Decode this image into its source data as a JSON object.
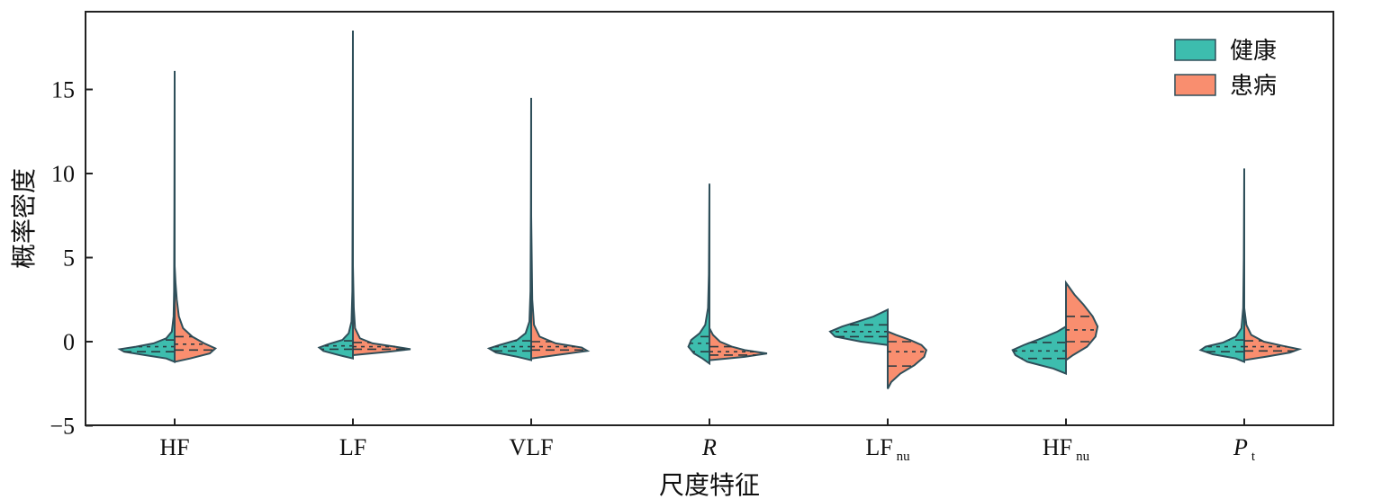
{
  "chart_data": {
    "type": "violin",
    "xlabel": "尺度特征",
    "ylabel": "概率密度",
    "ylim": [
      -5,
      19
    ],
    "yticks": [
      -5,
      0,
      5,
      10,
      15
    ],
    "grid": false,
    "legend_position": "top-right",
    "colors": {
      "healthy": "#3dbdae",
      "patient": "#f98e6f"
    },
    "categories": [
      {
        "name": "HF",
        "sub": "",
        "italic": false
      },
      {
        "name": "LF",
        "sub": "",
        "italic": false
      },
      {
        "name": "VLF",
        "sub": "",
        "italic": false
      },
      {
        "name": "R",
        "sub": "",
        "italic": true
      },
      {
        "name": "LF",
        "sub": "nu",
        "italic": false
      },
      {
        "name": "HF",
        "sub": "nu",
        "italic": false
      },
      {
        "name": "P",
        "sub": "t",
        "italic": true
      }
    ],
    "series": [
      {
        "name": "健康",
        "violins": [
          {
            "min": -1.2,
            "max": 16.1,
            "q1": -0.6,
            "median": -0.3,
            "q3": 0.1,
            "profile": [
              [
                -1.2,
                0.0
              ],
              [
                -1.0,
                0.12
              ],
              [
                -0.8,
                0.42
              ],
              [
                -0.6,
                0.72
              ],
              [
                -0.45,
                0.78
              ],
              [
                -0.3,
                0.55
              ],
              [
                -0.1,
                0.3
              ],
              [
                0.2,
                0.12
              ],
              [
                0.6,
                0.04
              ],
              [
                1.5,
                0.015
              ],
              [
                3,
                0.008
              ],
              [
                8,
                0.004
              ],
              [
                16.1,
                0.0
              ]
            ]
          },
          {
            "min": -1.0,
            "max": 18.5,
            "q1": -0.45,
            "median": -0.25,
            "q3": 0.05,
            "profile": [
              [
                -1.0,
                0.0
              ],
              [
                -0.8,
                0.2
              ],
              [
                -0.55,
                0.42
              ],
              [
                -0.35,
                0.48
              ],
              [
                -0.15,
                0.35
              ],
              [
                0.1,
                0.15
              ],
              [
                0.5,
                0.06
              ],
              [
                1.2,
                0.02
              ],
              [
                3,
                0.008
              ],
              [
                9,
                0.004
              ],
              [
                18.5,
                0.0
              ]
            ]
          },
          {
            "min": -1.1,
            "max": 14.5,
            "q1": -0.55,
            "median": -0.3,
            "q3": 0.05,
            "profile": [
              [
                -1.1,
                0.0
              ],
              [
                -0.9,
                0.2
              ],
              [
                -0.65,
                0.5
              ],
              [
                -0.4,
                0.6
              ],
              [
                -0.2,
                0.45
              ],
              [
                0.1,
                0.2
              ],
              [
                0.5,
                0.08
              ],
              [
                1.2,
                0.025
              ],
              [
                3,
                0.01
              ],
              [
                8,
                0.004
              ],
              [
                14.5,
                0.0
              ]
            ]
          },
          {
            "min": -1.3,
            "max": 9.4,
            "q1": -0.6,
            "median": -0.1,
            "q3": 0.3,
            "profile": [
              [
                -1.3,
                0.0
              ],
              [
                -1.0,
                0.1
              ],
              [
                -0.7,
                0.22
              ],
              [
                -0.3,
                0.3
              ],
              [
                0.1,
                0.26
              ],
              [
                0.5,
                0.14
              ],
              [
                1.0,
                0.06
              ],
              [
                2.0,
                0.02
              ],
              [
                4,
                0.008
              ],
              [
                9.4,
                0.0
              ]
            ]
          },
          {
            "min": -0.2,
            "max": 1.9,
            "q1": 0.3,
            "median": 0.6,
            "q3": 1.0,
            "profile": [
              [
                -0.2,
                0.0
              ],
              [
                0.0,
                0.38
              ],
              [
                0.3,
                0.75
              ],
              [
                0.6,
                0.82
              ],
              [
                0.9,
                0.65
              ],
              [
                1.2,
                0.42
              ],
              [
                1.5,
                0.2
              ],
              [
                1.9,
                0.0
              ]
            ]
          },
          {
            "min": -1.9,
            "max": 0.9,
            "q1": -1.0,
            "median": -0.55,
            "q3": -0.05,
            "profile": [
              [
                -1.9,
                0.0
              ],
              [
                -1.6,
                0.18
              ],
              [
                -1.2,
                0.55
              ],
              [
                -0.8,
                0.72
              ],
              [
                -0.5,
                0.76
              ],
              [
                -0.2,
                0.6
              ],
              [
                0.2,
                0.35
              ],
              [
                0.6,
                0.12
              ],
              [
                0.9,
                0.0
              ]
            ]
          },
          {
            "min": -1.2,
            "max": 10.3,
            "q1": -0.6,
            "median": -0.3,
            "q3": 0.1,
            "profile": [
              [
                -1.2,
                0.0
              ],
              [
                -1.0,
                0.12
              ],
              [
                -0.75,
                0.45
              ],
              [
                -0.5,
                0.62
              ],
              [
                -0.3,
                0.55
              ],
              [
                -0.05,
                0.3
              ],
              [
                0.3,
                0.12
              ],
              [
                0.8,
                0.04
              ],
              [
                2,
                0.015
              ],
              [
                5,
                0.006
              ],
              [
                10.3,
                0.0
              ]
            ]
          }
        ]
      },
      {
        "name": "患病",
        "violins": [
          {
            "min": -1.2,
            "max": 4.5,
            "q1": -0.5,
            "median": -0.15,
            "q3": 0.3,
            "profile": [
              [
                -1.2,
                0.0
              ],
              [
                -1.0,
                0.22
              ],
              [
                -0.7,
                0.5
              ],
              [
                -0.4,
                0.58
              ],
              [
                -0.1,
                0.42
              ],
              [
                0.3,
                0.25
              ],
              [
                0.8,
                0.12
              ],
              [
                1.5,
                0.06
              ],
              [
                2.5,
                0.03
              ],
              [
                3.5,
                0.012
              ],
              [
                4.5,
                0.0
              ]
            ]
          },
          {
            "min": -0.8,
            "max": 4.5,
            "q1": -0.45,
            "median": -0.3,
            "q3": -0.05,
            "profile": [
              [
                -0.8,
                0.0
              ],
              [
                -0.6,
                0.5
              ],
              [
                -0.45,
                0.82
              ],
              [
                -0.3,
                0.6
              ],
              [
                -0.1,
                0.28
              ],
              [
                0.2,
                0.1
              ],
              [
                0.8,
                0.03
              ],
              [
                2,
                0.012
              ],
              [
                4.5,
                0.0
              ]
            ]
          },
          {
            "min": -1.0,
            "max": 7.5,
            "q1": -0.5,
            "median": -0.3,
            "q3": 0.0,
            "profile": [
              [
                -1.0,
                0.0
              ],
              [
                -0.8,
                0.35
              ],
              [
                -0.55,
                0.8
              ],
              [
                -0.35,
                0.72
              ],
              [
                -0.1,
                0.35
              ],
              [
                0.3,
                0.12
              ],
              [
                1.0,
                0.04
              ],
              [
                2.5,
                0.015
              ],
              [
                7.5,
                0.0
              ]
            ]
          },
          {
            "min": -1.1,
            "max": 0.8,
            "q1": -0.8,
            "median": -0.6,
            "q3": -0.3,
            "profile": [
              [
                -1.1,
                0.0
              ],
              [
                -0.9,
                0.5
              ],
              [
                -0.7,
                0.82
              ],
              [
                -0.5,
                0.5
              ],
              [
                -0.3,
                0.32
              ],
              [
                0.0,
                0.15
              ],
              [
                0.4,
                0.05
              ],
              [
                0.8,
                0.0
              ]
            ]
          },
          {
            "min": -2.8,
            "max": 0.6,
            "q1": -1.45,
            "median": -0.6,
            "q3": 0.0,
            "profile": [
              [
                -2.8,
                0.0
              ],
              [
                -2.4,
                0.05
              ],
              [
                -1.9,
                0.18
              ],
              [
                -1.4,
                0.38
              ],
              [
                -0.9,
                0.52
              ],
              [
                -0.5,
                0.55
              ],
              [
                -0.2,
                0.48
              ],
              [
                0.1,
                0.32
              ],
              [
                0.4,
                0.12
              ],
              [
                0.6,
                0.0
              ]
            ]
          },
          {
            "min": -1.1,
            "max": 3.5,
            "q1": 0.0,
            "median": 0.7,
            "q3": 1.5,
            "profile": [
              [
                -1.1,
                0.0
              ],
              [
                -0.8,
                0.1
              ],
              [
                -0.3,
                0.3
              ],
              [
                0.3,
                0.42
              ],
              [
                0.9,
                0.45
              ],
              [
                1.5,
                0.38
              ],
              [
                2.2,
                0.25
              ],
              [
                2.8,
                0.12
              ],
              [
                3.5,
                0.0
              ]
            ]
          },
          {
            "min": -1.1,
            "max": 2.0,
            "q1": -0.55,
            "median": -0.3,
            "q3": 0.05,
            "profile": [
              [
                -1.1,
                0.0
              ],
              [
                -0.9,
                0.3
              ],
              [
                -0.65,
                0.65
              ],
              [
                -0.45,
                0.78
              ],
              [
                -0.25,
                0.55
              ],
              [
                0.0,
                0.28
              ],
              [
                0.4,
                0.1
              ],
              [
                1.0,
                0.03
              ],
              [
                2.0,
                0.0
              ]
            ]
          }
        ]
      }
    ]
  }
}
